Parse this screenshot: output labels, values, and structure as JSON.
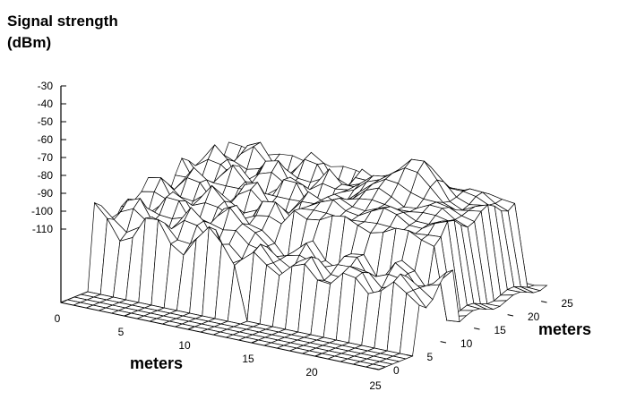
{
  "chart_data": {
    "type": "surface",
    "zlabel_line1": "Signal strength",
    "zlabel_line2": "(dBm)",
    "xlabel": "meters",
    "ylabel": "meters",
    "z_ticks": [
      "-30",
      "-40",
      "-50",
      "-60",
      "-70",
      "-80",
      "-90",
      "-100",
      "-110"
    ],
    "x_ticks": [
      "0",
      "5",
      "10",
      "15",
      "20",
      "25"
    ],
    "y_ticks": [
      "0",
      "5",
      "10",
      "15",
      "20",
      "25"
    ],
    "xlim": [
      0,
      25
    ],
    "ylim": [
      0,
      25
    ],
    "zlim": [
      -110,
      -30
    ],
    "floor_value": -110,
    "grid": true,
    "surface_color": "#000000",
    "surface_fill": "#ffffff"
  }
}
